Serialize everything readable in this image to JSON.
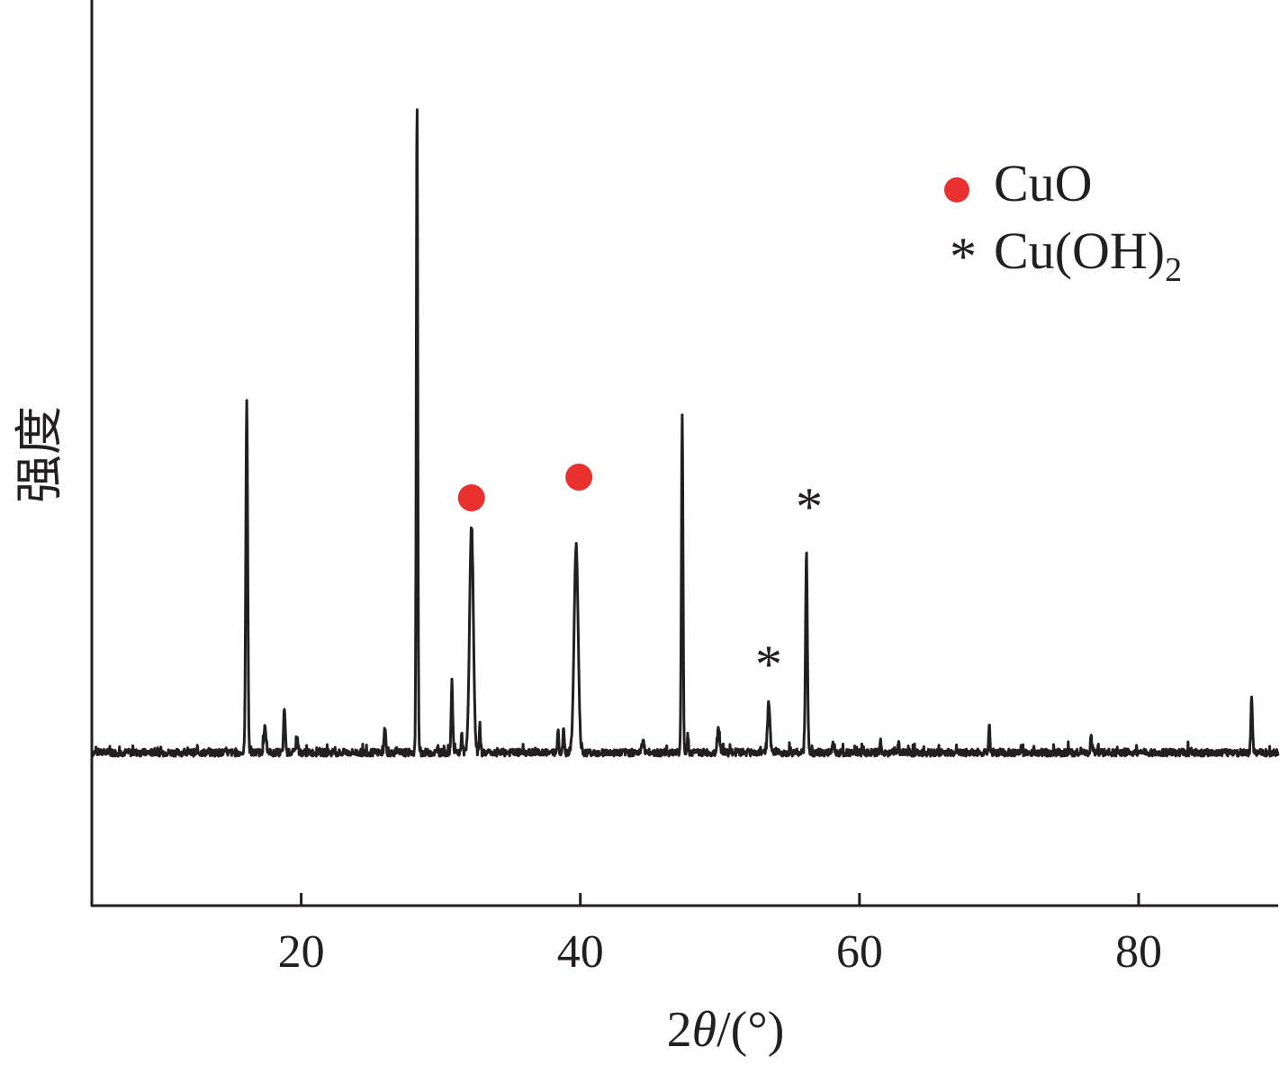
{
  "chart_data": {
    "type": "line",
    "xlabel_prefix": "2",
    "xlabel_theta": "θ",
    "xlabel_unit": "/(°)",
    "ylabel": "强度",
    "xlim": [
      5,
      90
    ],
    "xticks": [
      "20",
      "40",
      "60",
      "80"
    ],
    "xtick_values": [
      20,
      40,
      60,
      80
    ],
    "line_color": "#231f20",
    "marker_color": "#e8312f",
    "legend": {
      "position": "top-right",
      "items": [
        {
          "marker": "circle",
          "label": "CuO"
        },
        {
          "marker": "asterisk",
          "label_main": "Cu(OH)",
          "label_sub": "2"
        }
      ]
    },
    "phase_markers": [
      {
        "phase": "CuO",
        "marker": "circle",
        "x": 32.2
      },
      {
        "phase": "CuO",
        "marker": "circle",
        "x": 39.9
      },
      {
        "phase": "Cu(OH)2",
        "marker": "asterisk",
        "x": 53.5,
        "symbol": "*"
      },
      {
        "phase": "Cu(OH)2",
        "marker": "asterisk",
        "x": 56.4,
        "symbol": "*"
      }
    ],
    "ylim": [
      -100,
      1000
    ],
    "baseline_intensity": 0,
    "peaks": [
      {
        "x": 16.1,
        "y": 580,
        "w": 0.14
      },
      {
        "x": 17.4,
        "y": 40,
        "w": 0.18
      },
      {
        "x": 18.8,
        "y": 72,
        "w": 0.12
      },
      {
        "x": 19.7,
        "y": 25,
        "w": 0.15
      },
      {
        "x": 26.0,
        "y": 42,
        "w": 0.12
      },
      {
        "x": 28.3,
        "y": 1070,
        "w": 0.11
      },
      {
        "x": 30.8,
        "y": 118,
        "w": 0.12
      },
      {
        "x": 31.5,
        "y": 30,
        "w": 0.1
      },
      {
        "x": 32.2,
        "y": 370,
        "w": 0.28
      },
      {
        "x": 32.8,
        "y": 45,
        "w": 0.1
      },
      {
        "x": 38.4,
        "y": 40,
        "w": 0.1
      },
      {
        "x": 38.8,
        "y": 38,
        "w": 0.1
      },
      {
        "x": 39.7,
        "y": 338,
        "w": 0.3
      },
      {
        "x": 44.5,
        "y": 20,
        "w": 0.15
      },
      {
        "x": 47.3,
        "y": 550,
        "w": 0.12
      },
      {
        "x": 47.7,
        "y": 30,
        "w": 0.1
      },
      {
        "x": 49.9,
        "y": 35,
        "w": 0.2
      },
      {
        "x": 53.5,
        "y": 80,
        "w": 0.18
      },
      {
        "x": 56.2,
        "y": 328,
        "w": 0.14
      },
      {
        "x": 58.1,
        "y": 20,
        "w": 0.12
      },
      {
        "x": 61.5,
        "y": 18,
        "w": 0.1
      },
      {
        "x": 62.8,
        "y": 18,
        "w": 0.1
      },
      {
        "x": 69.3,
        "y": 48,
        "w": 0.1
      },
      {
        "x": 76.6,
        "y": 25,
        "w": 0.12
      },
      {
        "x": 88.1,
        "y": 90,
        "w": 0.12
      }
    ]
  }
}
